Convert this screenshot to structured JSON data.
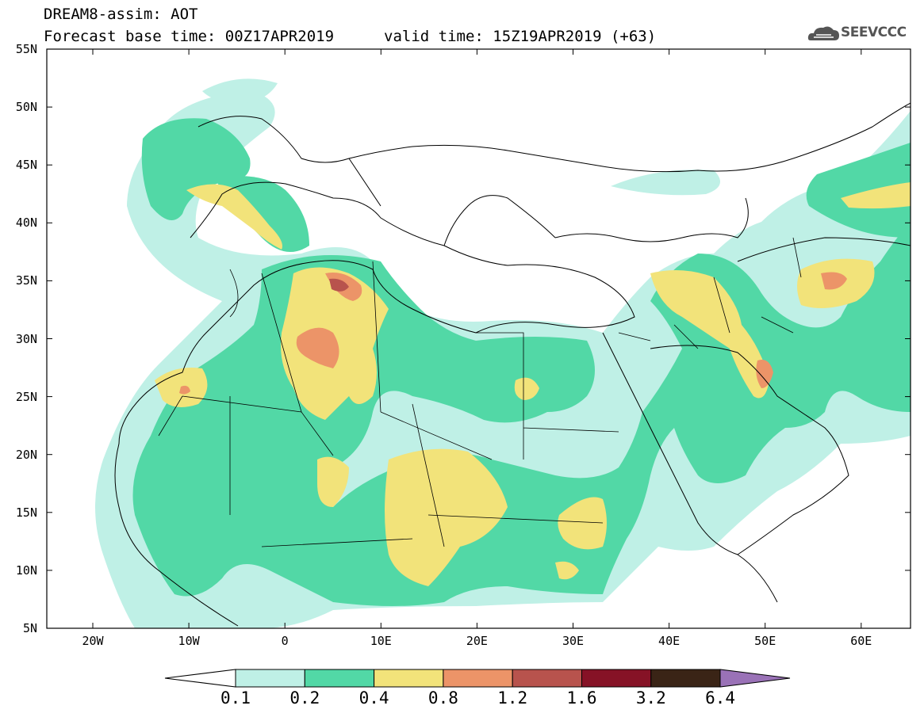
{
  "header": {
    "title_line1": "DREAM8-assim: AOT",
    "title_line2": "Forecast base time: 00Z17APR2019",
    "valid_time": "valid time: 15Z19APR2019 (+63)",
    "logo_text": "SEEVCCC"
  },
  "axes": {
    "lat_labels": [
      "55N",
      "50N",
      "45N",
      "40N",
      "35N",
      "30N",
      "25N",
      "20N",
      "15N",
      "10N",
      "5N"
    ],
    "lon_labels": [
      "20W",
      "10W",
      "0",
      "10E",
      "20E",
      "30E",
      "40E",
      "50E",
      "60E"
    ]
  },
  "colorbar": {
    "labels": [
      "0.1",
      "0.2",
      "0.4",
      "0.8",
      "1.2",
      "1.6",
      "3.2",
      "6.4"
    ],
    "colors": [
      "#bff0e6",
      "#52d8a6",
      "#f2e37a",
      "#ec9468",
      "#b8534d",
      "#861226",
      "#3a2416",
      "#9a72b7"
    ]
  }
}
